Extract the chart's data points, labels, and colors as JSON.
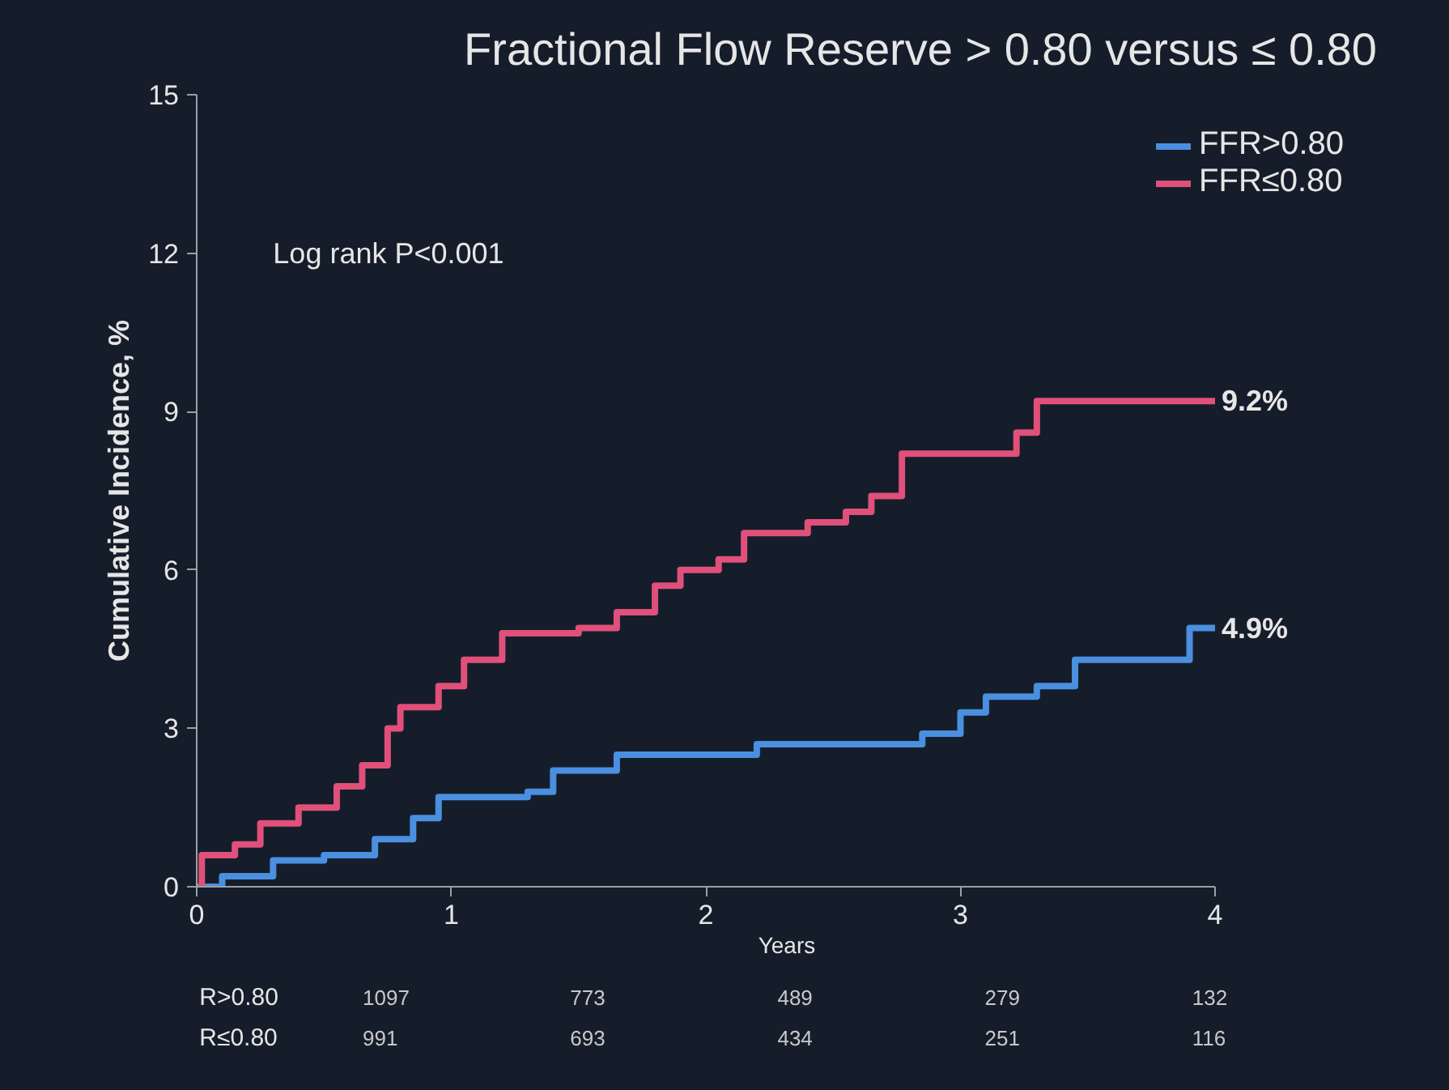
{
  "chart_data": {
    "type": "step",
    "title": "Fractional Flow Reserve > 0.80 versus ≤ 0.80",
    "xlabel": "Years",
    "ylabel": "Cumulative Incidence, %",
    "xlim": [
      0,
      4
    ],
    "xticks": [
      0,
      1,
      2,
      3,
      4
    ],
    "ylim": [
      0,
      15
    ],
    "yticks": [
      0,
      3,
      6,
      9,
      12,
      15
    ],
    "grid": false,
    "legend": "top right",
    "series": [
      {
        "name": "FFR>0.80",
        "color": "#4a8fe0",
        "x": [
          0,
          0.1,
          0.3,
          0.5,
          0.7,
          0.85,
          0.95,
          1.3,
          1.4,
          1.65,
          2.2,
          2.85,
          3.0,
          3.1,
          3.3,
          3.45,
          3.9,
          4.0
        ],
        "values": [
          0,
          0.2,
          0.5,
          0.6,
          0.9,
          1.3,
          1.7,
          1.8,
          2.2,
          2.5,
          2.7,
          2.9,
          3.3,
          3.6,
          3.8,
          4.3,
          4.9,
          4.9
        ]
      },
      {
        "name": "FFR≤0.80",
        "color": "#e0507a",
        "x": [
          0,
          0.02,
          0.15,
          0.25,
          0.4,
          0.55,
          0.65,
          0.75,
          0.8,
          0.95,
          1.05,
          1.2,
          1.5,
          1.65,
          1.8,
          1.9,
          2.05,
          2.15,
          2.4,
          2.55,
          2.65,
          2.77,
          3.22,
          3.3,
          4.0
        ],
        "values": [
          0,
          0.6,
          0.8,
          1.2,
          1.5,
          1.9,
          2.3,
          3.0,
          3.4,
          3.8,
          4.3,
          4.8,
          4.9,
          5.2,
          5.7,
          6.0,
          6.2,
          6.7,
          6.9,
          7.1,
          7.4,
          8.2,
          8.6,
          9.2,
          9.2
        ]
      }
    ],
    "annotations": [
      "Log rank P<0.001",
      {
        "text": "9.2%",
        "x": 4,
        "y": 9.2
      },
      {
        "text": "4.9%",
        "x": 4,
        "y": 4.9
      },
      "R>0.80",
      "1097",
      "773",
      "489",
      "279",
      "132",
      "R≤0.80",
      "991",
      "693",
      "434",
      "251",
      "116"
    ]
  }
}
